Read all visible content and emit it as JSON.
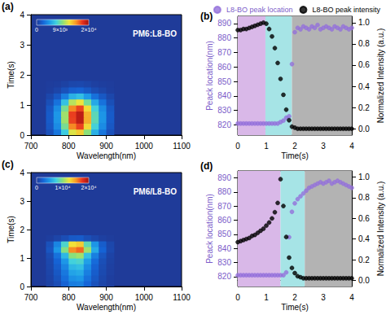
{
  "chart_data": [
    {
      "type": "heatmap",
      "panel": "(a)",
      "annotation": "PM6:L8-BO",
      "x_label": "Wavelength(nm)",
      "y_label": "Time(s)",
      "xlim": [
        700,
        1100
      ],
      "xticks": [
        700,
        800,
        900,
        1000,
        1100
      ],
      "ylim": [
        0,
        4
      ],
      "yticks": [
        0,
        1,
        2,
        3,
        4
      ],
      "heatmap": {
        "x": [
          750,
          770,
          790,
          810,
          830,
          850,
          870,
          890,
          910
        ],
        "y": [
          0.1,
          0.3,
          0.5,
          0.7,
          0.9,
          1.1,
          1.3,
          1.5,
          1.7
        ],
        "z": [
          [
            1300,
            3300,
            7300,
            12000,
            13300,
            10000,
            6000,
            3300,
            1300
          ],
          [
            1700,
            4300,
            9400,
            15400,
            17100,
            12800,
            7700,
            4300,
            1700
          ],
          [
            1900,
            4750,
            10450,
            17100,
            19000,
            14250,
            8550,
            4750,
            1900
          ],
          [
            1900,
            4800,
            10500,
            17200,
            19000,
            14200,
            8500,
            4700,
            1900
          ],
          [
            1700,
            4300,
            9400,
            15400,
            17100,
            12800,
            7700,
            4300,
            1700
          ],
          [
            1200,
            3100,
            6800,
            11100,
            12400,
            9300,
            5600,
            3100,
            1200
          ],
          [
            700,
            1700,
            3700,
            6000,
            6700,
            5000,
            3000,
            1700,
            700
          ],
          [
            200,
            600,
            1300,
            2100,
            2300,
            1700,
            1000,
            600,
            200
          ],
          [
            100,
            200,
            400,
            700,
            800,
            600,
            300,
            200,
            100
          ]
        ]
      },
      "colorbar": {
        "range": [
          0,
          20000
        ],
        "ticks": [
          0,
          {
            "value": 9000,
            "label": "9×10³"
          },
          {
            "value": 20000,
            "label": "2×10⁴"
          }
        ]
      }
    },
    {
      "type": "scatter",
      "panel": "(b)",
      "legend": "top",
      "x_label": "Time(s)",
      "y_label": "Peack location(nm)",
      "y2_label": "Normalized Intensity (a.u.)",
      "xlim": [
        0,
        4
      ],
      "xticks": [
        0,
        1,
        2,
        3,
        4
      ],
      "ylim": [
        813,
        895
      ],
      "yticks": [
        820,
        830,
        840,
        850,
        860,
        870,
        880,
        890
      ],
      "y2lim": [
        -0.06,
        1.06
      ],
      "y2ticks": [
        {
          "value": 0,
          "label": "0.0"
        },
        0.2,
        0.4,
        0.6,
        0.8,
        {
          "value": 1,
          "label": "1.0"
        }
      ],
      "regions": [
        {
          "from": 0,
          "to": 0.97,
          "color": "#d9b8e8"
        },
        {
          "from": 0.97,
          "to": 1.9,
          "color": "#a6e4e6"
        },
        {
          "from": 1.9,
          "to": 4,
          "color": "#b3b3b3"
        }
      ],
      "x": [
        0,
        0.1,
        0.2,
        0.3,
        0.4,
        0.5,
        0.6,
        0.7,
        0.8,
        0.9,
        1.0,
        1.1,
        1.2,
        1.3,
        1.4,
        1.5,
        1.6,
        1.7,
        1.8,
        1.9,
        2.0,
        2.1,
        2.2,
        2.3,
        2.4,
        2.5,
        2.6,
        2.7,
        2.8,
        2.9,
        3.0,
        3.1,
        3.2,
        3.3,
        3.4,
        3.5,
        3.6,
        3.7,
        3.8,
        3.9,
        4.0
      ],
      "series": [
        {
          "name": "L8-BO peak location",
          "color": "#9370db",
          "marker": "circle",
          "values": [
            821,
            821,
            821,
            821,
            821,
            821,
            821,
            821,
            821,
            821,
            821,
            821,
            821,
            821,
            821,
            822,
            823,
            825,
            826,
            862,
            884,
            887,
            886,
            888,
            887,
            886,
            888,
            887,
            889,
            886,
            887,
            888,
            887,
            886,
            888,
            887,
            886,
            888,
            887,
            886,
            887
          ]
        },
        {
          "name": "L8-BO peak intensity",
          "color": "#000000",
          "marker": "circle",
          "axis": "y2",
          "values": [
            0.93,
            0.93,
            0.94,
            0.94,
            0.95,
            0.96,
            0.97,
            0.98,
            0.99,
            1.0,
            0.99,
            0.94,
            0.87,
            0.76,
            0.62,
            0.47,
            0.32,
            0.18,
            0.08,
            0.02,
            0.01,
            0,
            0,
            0,
            0,
            0,
            0,
            0,
            0,
            0,
            0,
            0,
            0,
            0,
            0,
            0,
            0,
            0,
            0,
            0,
            0
          ]
        }
      ]
    },
    {
      "type": "heatmap",
      "panel": "(c)",
      "annotation": "PM6/L8-BO",
      "x_label": "Wavelength(nm)",
      "y_label": "Time(s)",
      "xlim": [
        700,
        1100
      ],
      "xticks": [
        700,
        800,
        900,
        1000,
        1100
      ],
      "ylim": [
        0,
        4
      ],
      "yticks": [
        0,
        1,
        2,
        3,
        4
      ],
      "heatmap": {
        "x": [
          750,
          770,
          790,
          810,
          830,
          850,
          870,
          890,
          910
        ],
        "y": [
          0.1,
          0.3,
          0.5,
          0.7,
          0.9,
          1.1,
          1.3,
          1.5,
          1.7
        ],
        "z": [
          [
            400,
            1100,
            2300,
            3600,
            3800,
            2500,
            1300,
            600,
            200
          ],
          [
            500,
            1400,
            2900,
            4500,
            4800,
            3100,
            1700,
            700,
            200
          ],
          [
            600,
            1700,
            3400,
            5400,
            5700,
            3700,
            2000,
            900,
            300
          ],
          [
            700,
            2000,
            4000,
            6300,
            6700,
            4300,
            2300,
            1000,
            300
          ],
          [
            800,
            2400,
            4800,
            7600,
            8000,
            5200,
            2800,
            1200,
            400
          ],
          [
            1000,
            3100,
            6300,
            9900,
            10500,
            6800,
            3700,
            1600,
            500
          ],
          [
            1600,
            4800,
            9700,
            15300,
            16200,
            10500,
            5700,
            2400,
            800
          ],
          [
            1300,
            4000,
            8000,
            12600,
            13300,
            8600,
            4700,
            2000,
            700
          ],
          [
            200,
            600,
            1100,
            1800,
            1900,
            1200,
            700,
            300,
            100
          ]
        ]
      },
      "colorbar": {
        "range": [
          0,
          20000
        ],
        "ticks": [
          0,
          {
            "value": 10000,
            "label": "1×10⁴"
          },
          {
            "value": 20000,
            "label": "2×10⁴"
          }
        ]
      }
    },
    {
      "type": "scatter",
      "panel": "(d)",
      "x_label": "Time(s)",
      "y_label": "Peack location(nm)",
      "y2_label": "Normalized Intensity (a.u.)",
      "xlim": [
        0,
        4
      ],
      "xticks": [
        0,
        1,
        2,
        3,
        4
      ],
      "ylim": [
        813,
        895
      ],
      "yticks": [
        820,
        830,
        840,
        850,
        860,
        870,
        880,
        890
      ],
      "y2lim": [
        -0.06,
        1.06
      ],
      "y2ticks": [
        {
          "value": 0,
          "label": "0.0"
        },
        0.2,
        0.4,
        0.6,
        0.8,
        {
          "value": 1,
          "label": "1.0"
        }
      ],
      "regions": [
        {
          "from": 0,
          "to": 1.5,
          "color": "#d9b8e8"
        },
        {
          "from": 1.5,
          "to": 2.35,
          "color": "#a6e4e6"
        },
        {
          "from": 2.35,
          "to": 4,
          "color": "#b3b3b3"
        }
      ],
      "x": [
        0,
        0.1,
        0.2,
        0.3,
        0.4,
        0.5,
        0.6,
        0.7,
        0.8,
        0.9,
        1.0,
        1.1,
        1.2,
        1.3,
        1.4,
        1.5,
        1.6,
        1.7,
        1.8,
        1.9,
        2.0,
        2.1,
        2.2,
        2.3,
        2.4,
        2.5,
        2.6,
        2.7,
        2.8,
        2.9,
        3.0,
        3.1,
        3.2,
        3.3,
        3.4,
        3.5,
        3.6,
        3.7,
        3.8,
        3.9,
        4.0
      ],
      "series": [
        {
          "color": "#9370db",
          "marker": "circle",
          "values": [
            821,
            821,
            821,
            821,
            821,
            821,
            821,
            821,
            821,
            821,
            821,
            821,
            821,
            821,
            821,
            821,
            821,
            823,
            848,
            866,
            872,
            875,
            877,
            879,
            881,
            883,
            884,
            885,
            886,
            887,
            886,
            887,
            888,
            886,
            887,
            888,
            887,
            886,
            885,
            884,
            883
          ]
        },
        {
          "color": "#000000",
          "marker": "circle",
          "axis": "y2",
          "values": [
            0.37,
            0.38,
            0.39,
            0.4,
            0.41,
            0.43,
            0.44,
            0.46,
            0.48,
            0.5,
            0.53,
            0.56,
            0.6,
            0.66,
            0.75,
            0.98,
            0.72,
            0.42,
            0.22,
            0.12,
            0.07,
            0.04,
            0.03,
            0.02,
            0.02,
            0.02,
            0.02,
            0.02,
            0.02,
            0.02,
            0.02,
            0.02,
            0.02,
            0.02,
            0.02,
            0.02,
            0.02,
            0.02,
            0.02,
            0.02,
            0.02
          ]
        }
      ]
    }
  ]
}
